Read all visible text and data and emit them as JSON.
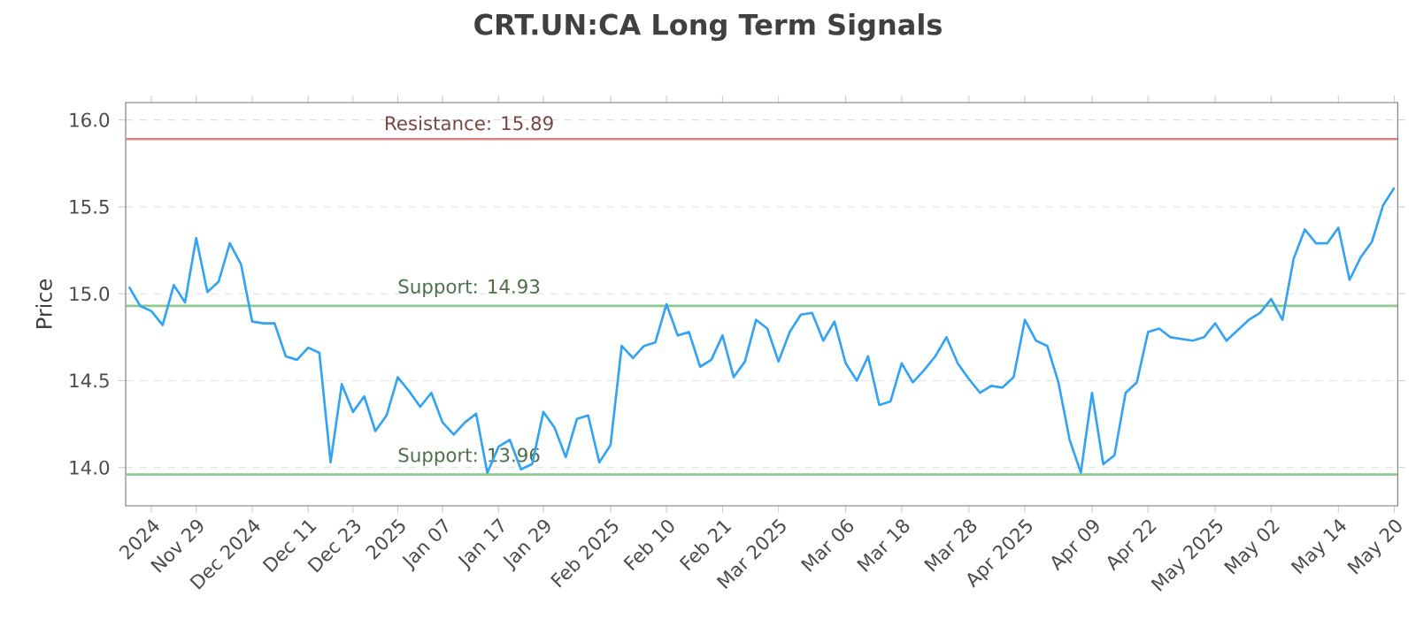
{
  "chart_data": {
    "type": "line",
    "title": "CRT.UN:CA Long Term Signals",
    "ylabel": "Price",
    "categories": [
      null,
      null,
      "2024",
      null,
      null,
      null,
      "Nov 29",
      null,
      null,
      null,
      null,
      "Dec 2024",
      null,
      null,
      null,
      null,
      "Dec 11",
      null,
      null,
      null,
      "Dec 23",
      null,
      null,
      null,
      "2025",
      null,
      null,
      null,
      "Jan 07",
      null,
      null,
      null,
      null,
      "Jan 17",
      null,
      null,
      null,
      "Jan 29",
      null,
      null,
      null,
      null,
      null,
      "Feb 2025",
      null,
      null,
      null,
      null,
      "Feb 10",
      null,
      null,
      null,
      null,
      "Feb 21",
      null,
      null,
      null,
      null,
      "Mar 2025",
      null,
      null,
      null,
      null,
      null,
      "Mar 06",
      null,
      null,
      null,
      null,
      "Mar 18",
      null,
      null,
      null,
      null,
      null,
      "Mar 28",
      null,
      null,
      null,
      null,
      "Apr 2025",
      null,
      null,
      null,
      null,
      null,
      "Apr 09",
      null,
      null,
      null,
      null,
      "Apr 22",
      null,
      null,
      null,
      null,
      null,
      "May 2025",
      null,
      null,
      null,
      null,
      "May 02",
      null,
      null,
      null,
      null,
      null,
      "May 14",
      null,
      null,
      null,
      null,
      "May 20"
    ],
    "series": [
      {
        "color": "#33a3f4",
        "values": [
          15.04,
          14.93,
          14.9,
          14.82,
          15.05,
          14.95,
          15.32,
          15.01,
          15.07,
          15.29,
          15.17,
          14.84,
          14.83,
          14.83,
          14.64,
          14.62,
          14.69,
          14.66,
          14.03,
          14.48,
          14.32,
          14.41,
          14.21,
          14.3,
          14.52,
          14.44,
          14.35,
          14.43,
          14.26,
          14.19,
          14.26,
          14.31,
          13.97,
          14.12,
          14.16,
          13.99,
          14.02,
          14.32,
          14.23,
          14.06,
          14.28,
          14.3,
          14.03,
          14.13,
          14.7,
          14.63,
          14.7,
          14.72,
          14.94,
          14.76,
          14.78,
          14.58,
          14.62,
          14.76,
          14.52,
          14.61,
          14.85,
          14.8,
          14.61,
          14.78,
          14.88,
          14.89,
          14.73,
          14.84,
          14.6,
          14.5,
          14.64,
          14.36,
          14.38,
          14.6,
          14.49,
          14.56,
          14.64,
          14.75,
          14.6,
          14.51,
          14.43,
          14.47,
          14.46,
          14.52,
          14.85,
          14.73,
          14.7,
          14.49,
          14.16,
          13.97,
          14.43,
          14.02,
          14.07,
          14.43,
          14.49,
          14.78,
          14.8,
          14.75,
          14.74,
          14.73,
          14.75,
          14.83,
          14.73,
          14.79,
          14.85,
          14.89,
          14.97,
          14.85,
          15.2,
          15.37,
          15.29,
          15.29,
          15.38,
          15.08,
          15.21,
          15.3,
          15.51,
          15.61
        ]
      }
    ],
    "ylim": [
      13.78,
      16.1
    ],
    "yticks": [
      {
        "value": 14.0,
        "label": "14.0"
      },
      {
        "value": 14.5,
        "label": "14.5"
      },
      {
        "value": 15.0,
        "label": "15.0"
      },
      {
        "value": 15.5,
        "label": "15.5"
      },
      {
        "value": 16.0,
        "label": "16.0"
      }
    ],
    "ref_lines": [
      {
        "axis": "y",
        "value": 15.89,
        "label": "Resistance: 15.89",
        "color": "#e08080"
      },
      {
        "axis": "y",
        "value": 14.93,
        "label": "Support: 14.93",
        "color": "#8cc98c"
      },
      {
        "axis": "y",
        "value": 13.96,
        "label": "Support: 13.96",
        "color": "#8cc98c"
      }
    ],
    "grid": "y",
    "marker": "none",
    "line_style": "solid"
  }
}
